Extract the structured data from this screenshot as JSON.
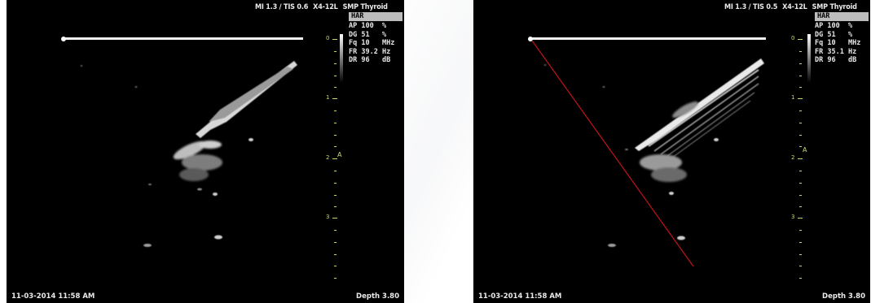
{
  "panels": [
    {
      "header": {
        "mi": "MI 1.3 / TIS 0.6",
        "probe": "X4-12L",
        "preset": "SMP Thyroid"
      },
      "side_label": "HAR",
      "params": [
        {
          "key": "AP",
          "val": "100",
          "unit": "%"
        },
        {
          "key": "DG",
          "val": "51",
          "unit": "%"
        },
        {
          "key": "Fq",
          "val": "10",
          "unit": "MHz"
        },
        {
          "key": "FR",
          "val": "39.2",
          "unit": "Hz"
        },
        {
          "key": "DR",
          "val": "96",
          "unit": "dB"
        }
      ],
      "depth_labels": [
        "0",
        "1",
        "2",
        "3"
      ],
      "focus_marker": "A",
      "timestamp": "11-03-2014 11:58 AM",
      "depth": "Depth 3.80"
    },
    {
      "header": {
        "mi": "MI 1.3 / TIS 0.5",
        "probe": "X4-12L",
        "preset": "SMP Thyroid"
      },
      "side_label": "HAR",
      "params": [
        {
          "key": "AP",
          "val": "100",
          "unit": "%"
        },
        {
          "key": "DG",
          "val": "51",
          "unit": "%"
        },
        {
          "key": "Fq",
          "val": "10",
          "unit": "MHz"
        },
        {
          "key": "FR",
          "val": "35.1",
          "unit": "Hz"
        },
        {
          "key": "DR",
          "val": "96",
          "unit": "dB"
        }
      ],
      "depth_labels": [
        "0",
        "1",
        "2",
        "3"
      ],
      "focus_marker": "A",
      "timestamp": "11-03-2014 11:58 AM",
      "depth": "Depth 3.80"
    }
  ]
}
